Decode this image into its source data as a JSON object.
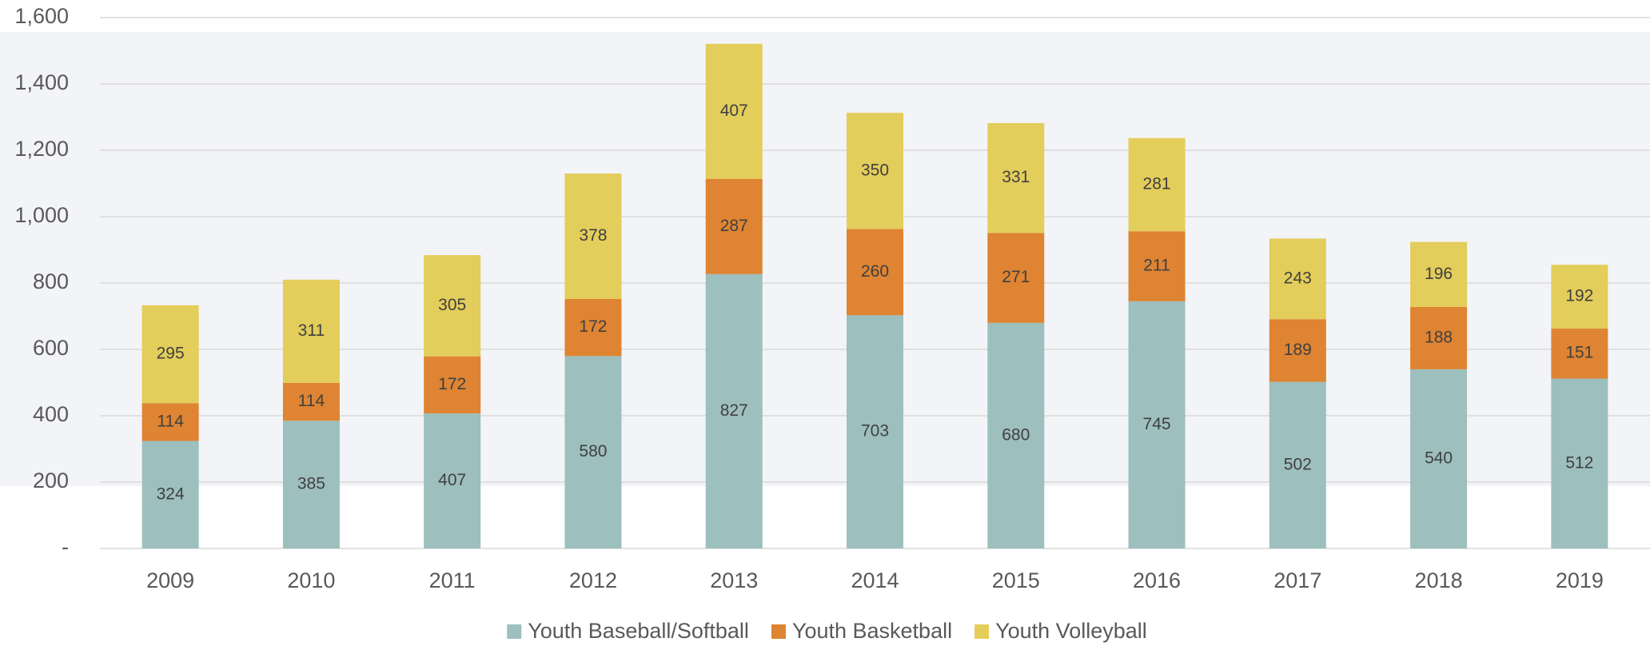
{
  "chart_data": {
    "type": "stacked_bar",
    "categories": [
      "2009",
      "2010",
      "2011",
      "2012",
      "2013",
      "2014",
      "2015",
      "2016",
      "2017",
      "2018",
      "2019"
    ],
    "series": [
      {
        "name": "Youth Baseball/Softball",
        "color": "#9dbfbd",
        "values": [
          324,
          385,
          407,
          580,
          827,
          703,
          680,
          745,
          502,
          540,
          512
        ]
      },
      {
        "name": "Youth Basketball",
        "color": "#de8432",
        "values": [
          114,
          114,
          172,
          172,
          287,
          260,
          271,
          211,
          189,
          188,
          151
        ]
      },
      {
        "name": "Youth Volleyball",
        "color": "#e3cd5b",
        "values": [
          295,
          311,
          305,
          378,
          407,
          350,
          331,
          281,
          243,
          196,
          192
        ]
      }
    ],
    "ylim": [
      0,
      1600
    ],
    "yticks": [
      {
        "value": 0,
        "label": "-"
      },
      200,
      400,
      600,
      800,
      {
        "value": 1000,
        "label": "1,000"
      },
      {
        "value": 1200,
        "label": "1,200"
      },
      {
        "value": 1400,
        "label": "1,400"
      },
      {
        "value": 1600,
        "label": "1,600"
      }
    ],
    "grid": true,
    "legend": "bottom"
  }
}
